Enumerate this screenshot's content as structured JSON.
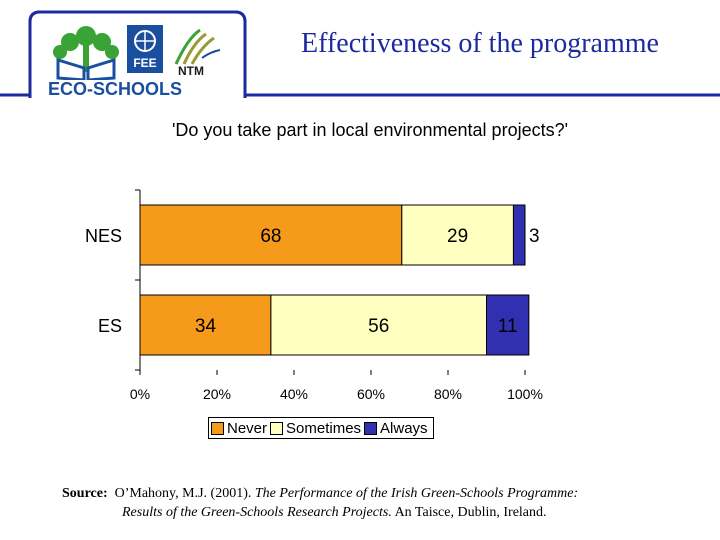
{
  "header": {
    "title": "Effectiveness of the programme",
    "logo_text": "ECO-SCHOOLS",
    "fee_logo_text": "FEE",
    "ntm_logo_text": "NTM"
  },
  "colors": {
    "never": "#f59a1a",
    "sometimes": "#ffffc0",
    "always": "#3030b0",
    "header_blue": "#1d2a9e"
  },
  "chart_data": {
    "type": "bar",
    "orientation": "horizontal",
    "stacked": "percent",
    "title": "'Do you take part in local environmental projects?'",
    "categories": [
      "NES",
      "ES"
    ],
    "series": [
      {
        "name": "Never",
        "values": [
          68,
          34
        ]
      },
      {
        "name": "Sometimes",
        "values": [
          29,
          56
        ]
      },
      {
        "name": "Always",
        "values": [
          3,
          11
        ]
      }
    ],
    "xlim": [
      0,
      100
    ],
    "xticks": [
      "0%",
      "20%",
      "40%",
      "60%",
      "80%",
      "100%"
    ],
    "legend_position": "bottom",
    "grid": false
  },
  "source": {
    "label": "Source:",
    "author": "O’Mahony, M.J. (2001).",
    "title_part1": "The Performance of the Irish Green-Schools Programme:",
    "title_part2": "Results of the Green-Schools Research Projects.",
    "publisher": "An Taisce, Dublin, Ireland."
  }
}
